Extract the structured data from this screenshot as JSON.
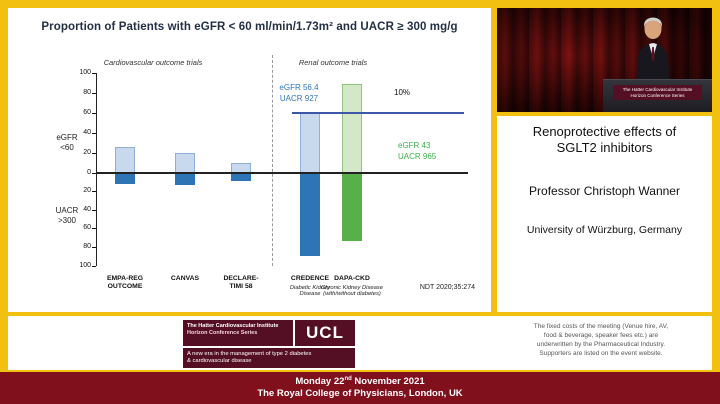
{
  "colors": {
    "frame_yellow": "#f2c011",
    "footer_red": "#80101c",
    "ucl_maroon": "#550f24",
    "cvot_bar_light": "#c9d9ed",
    "cvot_bar_dark": "#2e75b6",
    "dapa_bar_light": "#d2e8c6",
    "dapa_bar_dark": "#57b04a"
  },
  "chart_data": {
    "type": "bar",
    "title": "Proportion of Patients with eGFR < 60 ml/min/1.73m² and UACR ≥ 300 mg/g",
    "sections": [
      {
        "label": "Cardiovascular outcome trials"
      },
      {
        "label": "Renal outcome trials"
      }
    ],
    "axis": {
      "upper_label_lines": [
        "eGFR",
        "<60"
      ],
      "lower_label_lines": [
        "UACR",
        ">300"
      ],
      "upper_ticks": [
        100,
        80,
        60,
        40,
        20,
        0
      ],
      "lower_ticks": [
        20,
        40,
        60,
        80,
        100
      ],
      "upper_range": [
        0,
        100
      ],
      "lower_range": [
        0,
        100
      ]
    },
    "trials": [
      {
        "name": "EMPA-REG OUTCOME",
        "section": "Cardiovascular outcome trials",
        "egfr_lt60_pct": 26,
        "uacr_ge300_pct": 11,
        "up_color": "#c9d9ed",
        "up_border": "#8fb0d6",
        "down_color": "#2e75b6",
        "subnote": ""
      },
      {
        "name": "CANVAS",
        "section": "Cardiovascular outcome trials",
        "egfr_lt60_pct": 20,
        "uacr_ge300_pct": 12,
        "up_color": "#c9d9ed",
        "up_border": "#8fb0d6",
        "down_color": "#2e75b6",
        "subnote": ""
      },
      {
        "name": "DECLARE-TIMI 58",
        "section": "Cardiovascular outcome trials",
        "egfr_lt60_pct": 10,
        "uacr_ge300_pct": 7,
        "up_color": "#c9d9ed",
        "up_border": "#8fb0d6",
        "down_color": "#2e75b6",
        "subnote": ""
      },
      {
        "name": "CREDENCE",
        "section": "Renal outcome trials",
        "egfr_lt60_pct": 60,
        "uacr_ge300_pct": 88,
        "up_color": "#c9d9ed",
        "up_border": "#8fb0d6",
        "down_color": "#2e75b6",
        "subnote": "Diabetic Kidney Disease"
      },
      {
        "name": "DAPA-CKD",
        "section": "Renal outcome trials",
        "egfr_lt60_pct": 89,
        "uacr_ge300_pct": 72,
        "up_color": "#d2e8c6",
        "up_border": "#8fc57e",
        "down_color": "#57b04a",
        "subnote": "Chronic Kidney Disease (with/without diabetes)"
      }
    ],
    "annotations": {
      "credence": {
        "lines": [
          "eGFR 56.4",
          "UACR 927"
        ],
        "color": "#2e75b6"
      },
      "percent": {
        "text": "10%"
      },
      "dapa": {
        "lines": [
          "eGFR 43",
          "UACR 965"
        ],
        "color": "#3daf4c"
      }
    },
    "reference_line": {
      "value": 60,
      "color": "#3c57a8"
    },
    "reference": "NDT 2020;35:274"
  },
  "video": {
    "podium_line1": "The Hatter Cardiovascular Institute",
    "podium_line2": "Horizon Conference Series"
  },
  "info_panel": {
    "title_lines": [
      "Renoprotective effects of",
      "SGLT2 inhibitors"
    ],
    "speaker": "Professor Christoph Wanner",
    "affiliation": "University of Würzburg, Germany"
  },
  "ucl": {
    "institute": "The Hatter Cardiovascular Institute",
    "series": "Horizon Conference Series",
    "logo": "UCL",
    "tagline_lines": [
      "A new era in the management of type 2 diabetes",
      "& cardiovascular disease"
    ]
  },
  "funding_note": {
    "lines": [
      "The fixed costs of the meeting (Venue hire, AV,",
      "food & beverage, speaker fees etc.) are",
      "underwritten by the Pharmaceutical Industry.",
      "Supporters are listed on the event website."
    ]
  },
  "footer": {
    "date_prefix": "Monday 22",
    "date_sup": "nd",
    "date_suffix": " November 2021",
    "venue": "The Royal College of Physicians, London, UK"
  }
}
